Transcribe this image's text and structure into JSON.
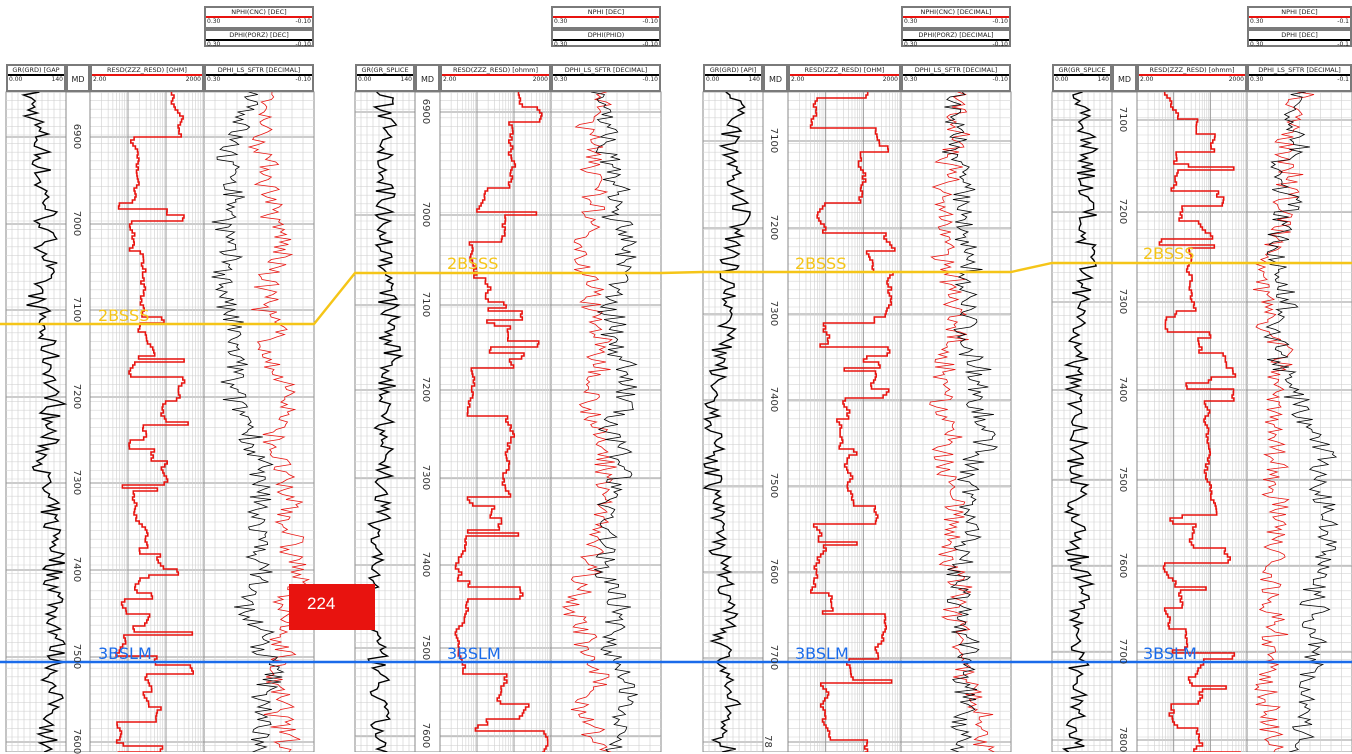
{
  "colors": {
    "gr_curve": "#000000",
    "resistivity_curve": "#e8130f",
    "neutron_curve": "#e8130f",
    "density_curve": "#000000",
    "top_2bsss": "#f5c518",
    "top_3bslm": "#1a6bea",
    "grid": "#c8c8c8",
    "header_border": "#7a7a7a"
  },
  "marker_badge": {
    "value": "224"
  },
  "tops": [
    {
      "name": "2BSSS",
      "color": "#f5c518"
    },
    {
      "name": "3BSLM",
      "color": "#1a6bea"
    }
  ],
  "wells": [
    {
      "gr": {
        "title": "GR(GRD) [GAP",
        "lo": "0.00",
        "hi": "140"
      },
      "md": "MD",
      "resd": {
        "title": "RESD(ZZZ_RESD) [OHM]",
        "lo": "2.00",
        "hi": "2000"
      },
      "nphi": {
        "title": "NPHI(CNC) [DEC]",
        "lo": "0.30",
        "hi": "-0.10"
      },
      "dphi": {
        "title": "DPHI(PORZ) [DEC]",
        "lo": "0.30",
        "hi": "-0.10"
      },
      "dphi_ls": {
        "title": "DPHI_LS_SFTR [DECIMAL]",
        "lo": "0.30",
        "hi": "-0.10"
      },
      "depth_ticks": [
        "6900",
        "7000",
        "7100",
        "7200",
        "7300",
        "7400",
        "7500",
        "7600"
      ]
    },
    {
      "gr": {
        "title": "GR(GR_SPLICE",
        "lo": "0.00",
        "hi": "140"
      },
      "md": "MD",
      "resd": {
        "title": "RESD(ZZZ_RESD) [ohmm]",
        "lo": "2.00",
        "hi": "2000"
      },
      "nphi": {
        "title": "NPHI [DEC]",
        "lo": "0.30",
        "hi": "-0.10"
      },
      "dphi": {
        "title": "DPHI(PHID)",
        "lo": "0.30",
        "hi": "-0.10"
      },
      "dphi_ls": {
        "title": "DPHI_LS_SFTR [DECIMAL]",
        "lo": "0.30",
        "hi": "-0.10"
      },
      "depth_ticks": [
        "6900",
        "7000",
        "7100",
        "7200",
        "7300",
        "7400",
        "7500",
        "7600"
      ]
    },
    {
      "gr": {
        "title": "GR(GRD) [API]",
        "lo": "0.00",
        "hi": "140"
      },
      "md": "MD",
      "resd": {
        "title": "RESD(ZZZ_RESD) [OHM]",
        "lo": "2.00",
        "hi": "2000"
      },
      "nphi": {
        "title": "NPHI(CNC) [DECIMAL]",
        "lo": "0.30",
        "hi": "-0.10"
      },
      "dphi": {
        "title": "DPHI(PORZ) [DECIMAL]",
        "lo": "0.30",
        "hi": "-0.10"
      },
      "dphi_ls": {
        "title": "DPHI_LS_SFTR [DECIMAL]",
        "lo": "0.30",
        "hi": "-0.10"
      },
      "depth_ticks": [
        "7100",
        "7200",
        "7300",
        "7400",
        "7500",
        "7600",
        "7700",
        "78"
      ]
    },
    {
      "gr": {
        "title": "GR(GR_SPLICE",
        "lo": "0.00",
        "hi": "140"
      },
      "md": "MD",
      "resd": {
        "title": "RESD(ZZZ_RESD) [ohmm]",
        "lo": "2.00",
        "hi": "2000"
      },
      "nphi": {
        "title": "NPHI [DEC]",
        "lo": "0.30",
        "hi": "-0.1"
      },
      "dphi": {
        "title": "DPHI [DEC]",
        "lo": "0.30",
        "hi": "-0.1"
      },
      "dphi_ls": {
        "title": "DPHI_LS_SFTR [DECIMAL]",
        "lo": "0.30",
        "hi": "-0.1"
      },
      "depth_ticks": [
        "7100",
        "7200",
        "7300",
        "7400",
        "7500",
        "7600",
        "7700",
        "7800"
      ]
    }
  ]
}
